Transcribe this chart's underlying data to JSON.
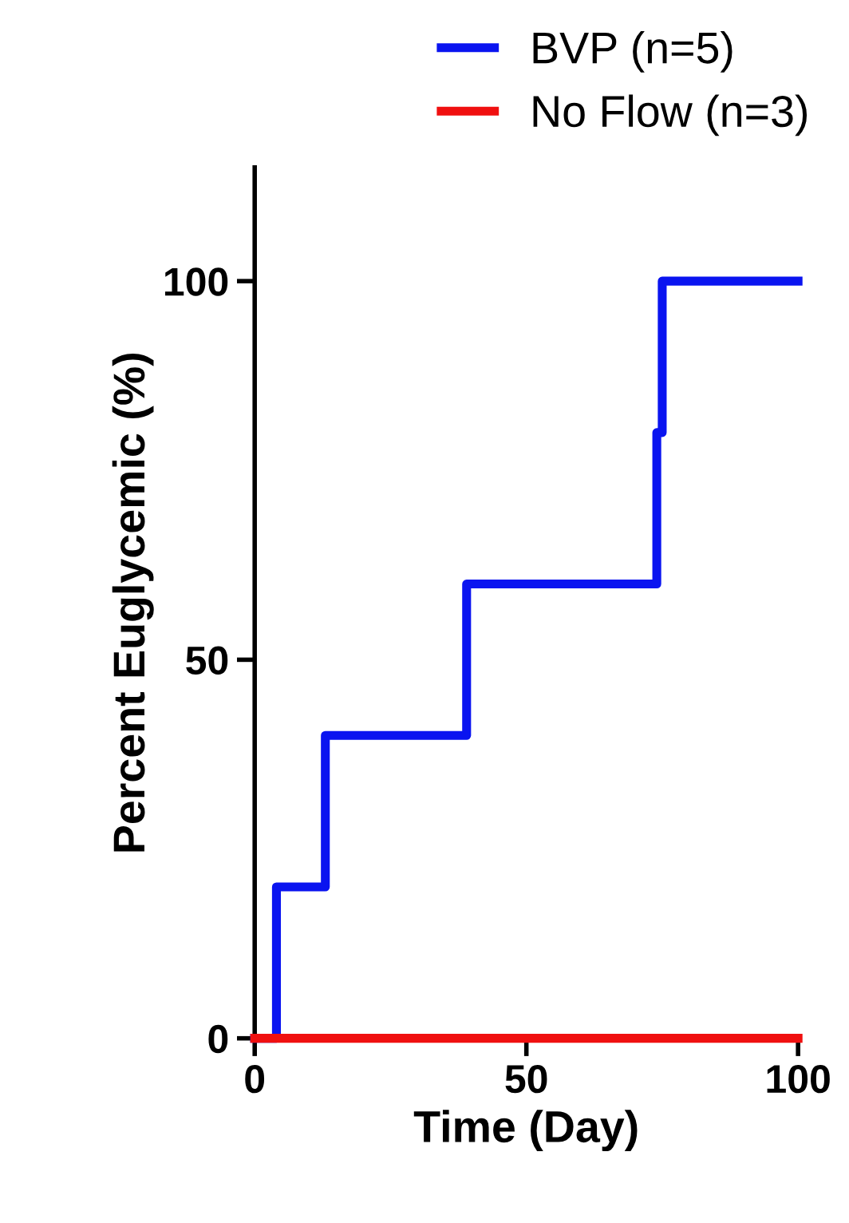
{
  "chart_data": {
    "type": "step",
    "xlabel": "Time (Day)",
    "ylabel": "Percent Euglycemic (%)",
    "xlim": [
      0,
      100
    ],
    "ylim": [
      0,
      115
    ],
    "xticks": [
      0,
      50,
      100
    ],
    "yticks": [
      0,
      50,
      100
    ],
    "legend": "top right",
    "grid": false,
    "series": [
      {
        "name": "BVP (n=5)",
        "color": "#0a14f0",
        "x": [
          0,
          4,
          13,
          39,
          74,
          75,
          100
        ],
        "values": [
          0,
          20,
          40,
          60,
          80,
          100,
          100
        ]
      },
      {
        "name": "No Flow (n=3)",
        "color": "#f01010",
        "x": [
          0,
          100
        ],
        "values": [
          0,
          0
        ]
      }
    ]
  }
}
